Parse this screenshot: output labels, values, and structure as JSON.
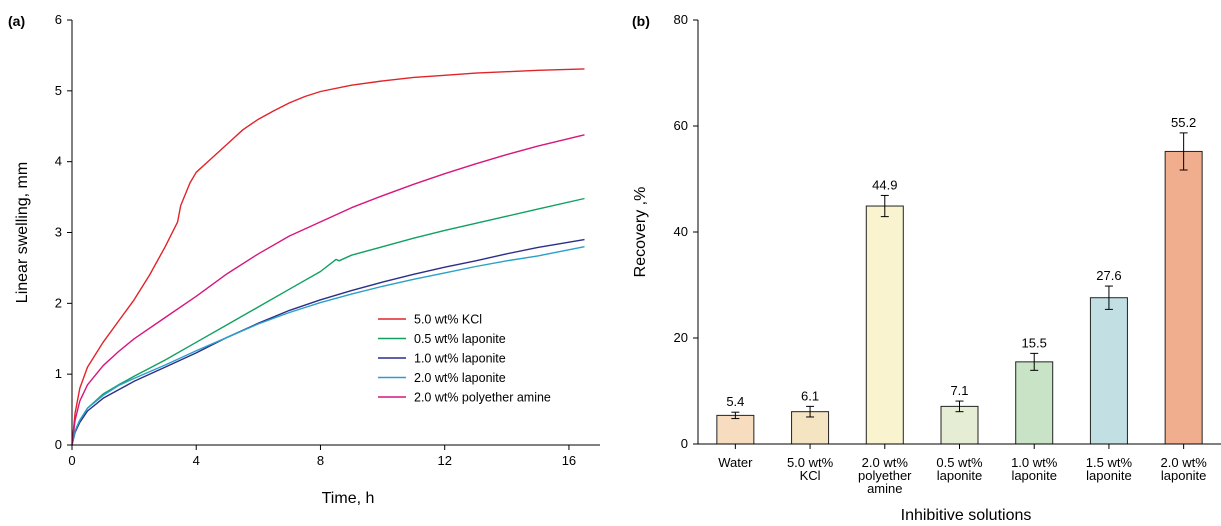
{
  "chart_data": [
    {
      "type": "line",
      "panel_label": "(a)",
      "xlabel": "Time, h",
      "ylabel": "Linear swelling, mm",
      "xlim": [
        0,
        17
      ],
      "ylim": [
        0,
        6
      ],
      "xticks": [
        0,
        4,
        8,
        12,
        16
      ],
      "yticks": [
        0,
        1,
        2,
        3,
        4,
        5,
        6
      ],
      "legend_position": "bottom-right",
      "series": [
        {
          "name": "5.0 wt% KCl",
          "color": "#e0242a",
          "points": [
            [
              0,
              0
            ],
            [
              0.1,
              0.45
            ],
            [
              0.25,
              0.8
            ],
            [
              0.5,
              1.1
            ],
            [
              1,
              1.45
            ],
            [
              1.5,
              1.75
            ],
            [
              2,
              2.05
            ],
            [
              2.5,
              2.4
            ],
            [
              3,
              2.8
            ],
            [
              3.4,
              3.15
            ],
            [
              3.5,
              3.38
            ],
            [
              3.8,
              3.7
            ],
            [
              4,
              3.85
            ],
            [
              4.5,
              4.05
            ],
            [
              5,
              4.25
            ],
            [
              5.5,
              4.45
            ],
            [
              6,
              4.6
            ],
            [
              6.5,
              4.72
            ],
            [
              7,
              4.83
            ],
            [
              7.5,
              4.92
            ],
            [
              8,
              4.99
            ],
            [
              9,
              5.08
            ],
            [
              10,
              5.14
            ],
            [
              11,
              5.19
            ],
            [
              12,
              5.22
            ],
            [
              13,
              5.25
            ],
            [
              14,
              5.27
            ],
            [
              15,
              5.29
            ],
            [
              16.5,
              5.31
            ]
          ]
        },
        {
          "name": "0.5 wt% laponite",
          "color": "#12a062",
          "points": [
            [
              0,
              0
            ],
            [
              0.1,
              0.2
            ],
            [
              0.25,
              0.35
            ],
            [
              0.5,
              0.52
            ],
            [
              1,
              0.72
            ],
            [
              1.5,
              0.85
            ],
            [
              2,
              0.97
            ],
            [
              3,
              1.2
            ],
            [
              4,
              1.45
            ],
            [
              5,
              1.7
            ],
            [
              6,
              1.95
            ],
            [
              7,
              2.2
            ],
            [
              8,
              2.45
            ],
            [
              8.5,
              2.62
            ],
            [
              8.6,
              2.6
            ],
            [
              9,
              2.68
            ],
            [
              10,
              2.8
            ],
            [
              11,
              2.92
            ],
            [
              12,
              3.03
            ],
            [
              13,
              3.13
            ],
            [
              14,
              3.23
            ],
            [
              15,
              3.33
            ],
            [
              16.5,
              3.48
            ]
          ]
        },
        {
          "name": "1.0 wt% laponite",
          "color": "#2c2e8a",
          "points": [
            [
              0,
              0
            ],
            [
              0.1,
              0.18
            ],
            [
              0.25,
              0.32
            ],
            [
              0.5,
              0.48
            ],
            [
              1,
              0.66
            ],
            [
              1.5,
              0.78
            ],
            [
              2,
              0.9
            ],
            [
              3,
              1.1
            ],
            [
              4,
              1.3
            ],
            [
              5,
              1.52
            ],
            [
              6,
              1.72
            ],
            [
              7,
              1.9
            ],
            [
              8,
              2.05
            ],
            [
              9,
              2.18
            ],
            [
              10,
              2.3
            ],
            [
              11,
              2.41
            ],
            [
              12,
              2.51
            ],
            [
              13,
              2.6
            ],
            [
              14,
              2.7
            ],
            [
              15,
              2.79
            ],
            [
              16.5,
              2.9
            ]
          ]
        },
        {
          "name": "2.0 wt% laponite",
          "color": "#2aa0c8",
          "points": [
            [
              0,
              0
            ],
            [
              0.1,
              0.2
            ],
            [
              0.25,
              0.35
            ],
            [
              0.5,
              0.52
            ],
            [
              1,
              0.7
            ],
            [
              1.5,
              0.84
            ],
            [
              2,
              0.94
            ],
            [
              3,
              1.13
            ],
            [
              4,
              1.33
            ],
            [
              5,
              1.52
            ],
            [
              6,
              1.71
            ],
            [
              7,
              1.87
            ],
            [
              8,
              2.01
            ],
            [
              9,
              2.13
            ],
            [
              10,
              2.24
            ],
            [
              11,
              2.34
            ],
            [
              12,
              2.43
            ],
            [
              13,
              2.52
            ],
            [
              14,
              2.6
            ],
            [
              15,
              2.67
            ],
            [
              16.5,
              2.8
            ]
          ]
        },
        {
          "name": "2.0 wt% polyether amine",
          "color": "#d6177e",
          "points": [
            [
              0,
              0
            ],
            [
              0.1,
              0.35
            ],
            [
              0.25,
              0.62
            ],
            [
              0.5,
              0.85
            ],
            [
              1,
              1.12
            ],
            [
              1.5,
              1.32
            ],
            [
              2,
              1.5
            ],
            [
              3,
              1.8
            ],
            [
              4,
              2.1
            ],
            [
              5,
              2.42
            ],
            [
              6,
              2.7
            ],
            [
              7,
              2.95
            ],
            [
              8,
              3.15
            ],
            [
              9,
              3.35
            ],
            [
              10,
              3.52
            ],
            [
              11,
              3.68
            ],
            [
              12,
              3.83
            ],
            [
              13,
              3.97
            ],
            [
              14,
              4.1
            ],
            [
              15,
              4.22
            ],
            [
              16.5,
              4.38
            ]
          ]
        }
      ]
    },
    {
      "type": "bar",
      "panel_label": "(b)",
      "xlabel": "Inhibitive solutions",
      "ylabel": "Recovery ,%",
      "ylim": [
        0,
        80
      ],
      "yticks": [
        0,
        20,
        40,
        60,
        80
      ],
      "categories": [
        [
          "Water"
        ],
        [
          "5.0 wt%",
          "KCl"
        ],
        [
          "2.0 wt%",
          "polyether",
          "amine"
        ],
        [
          "0.5 wt%",
          "laponite"
        ],
        [
          "1.0 wt%",
          "laponite"
        ],
        [
          "1.5 wt%",
          "laponite"
        ],
        [
          "2.0 wt%",
          "laponite"
        ]
      ],
      "values": [
        5.4,
        6.1,
        44.9,
        7.1,
        15.5,
        27.6,
        55.2
      ],
      "value_labels": [
        "5.4",
        "6.1",
        "44.9",
        "7.1",
        "15.5",
        "27.6",
        "55.2"
      ],
      "errors": [
        0.6,
        1.0,
        2.0,
        1.0,
        1.6,
        2.2,
        3.5
      ],
      "colors": [
        "#f8dcbf",
        "#f5e4c2",
        "#f9f4cf",
        "#e6edd5",
        "#c8e3c6",
        "#c2e0e4",
        "#f0ae8e"
      ]
    }
  ]
}
